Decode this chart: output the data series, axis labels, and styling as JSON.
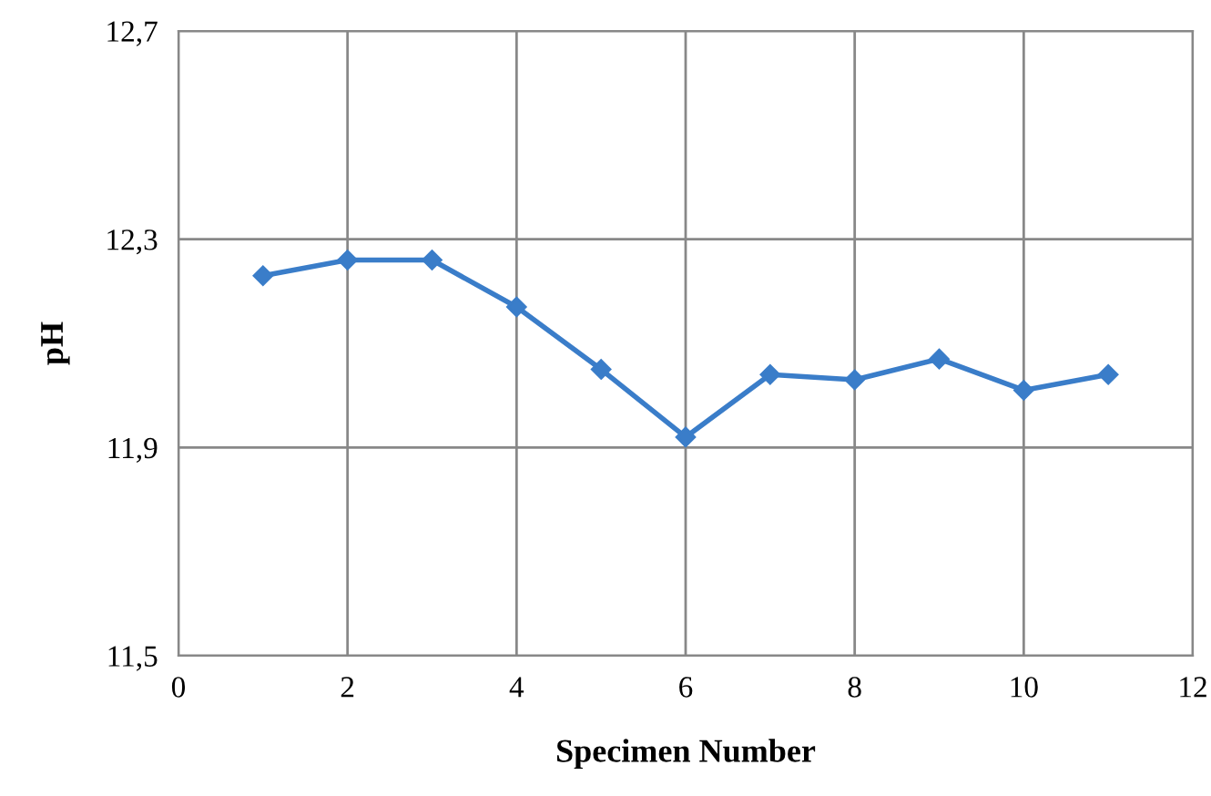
{
  "chart_data": {
    "type": "line",
    "xlabel": "Specimen Number",
    "ylabel": "pH",
    "x": [
      1,
      2,
      3,
      4,
      5,
      6,
      7,
      8,
      9,
      10,
      11
    ],
    "series": [
      {
        "color": "#3a7dc9",
        "values": [
          12.23,
          12.26,
          12.26,
          12.17,
          12.05,
          11.92,
          12.04,
          12.03,
          12.07,
          12.01,
          12.04
        ]
      }
    ],
    "xlim": [
      0,
      12
    ],
    "xticks": [
      0,
      2,
      4,
      6,
      8,
      10,
      12
    ],
    "ylim": [
      11.5,
      12.7
    ],
    "yticks": [
      {
        "value": 11.5,
        "label": "11,5"
      },
      {
        "value": 11.9,
        "label": "11,9"
      },
      {
        "value": 12.3,
        "label": "12,3"
      },
      {
        "value": 12.7,
        "label": "12,7"
      }
    ],
    "grid": true,
    "marker": "diamond",
    "line_style": "solid",
    "legend": false
  }
}
